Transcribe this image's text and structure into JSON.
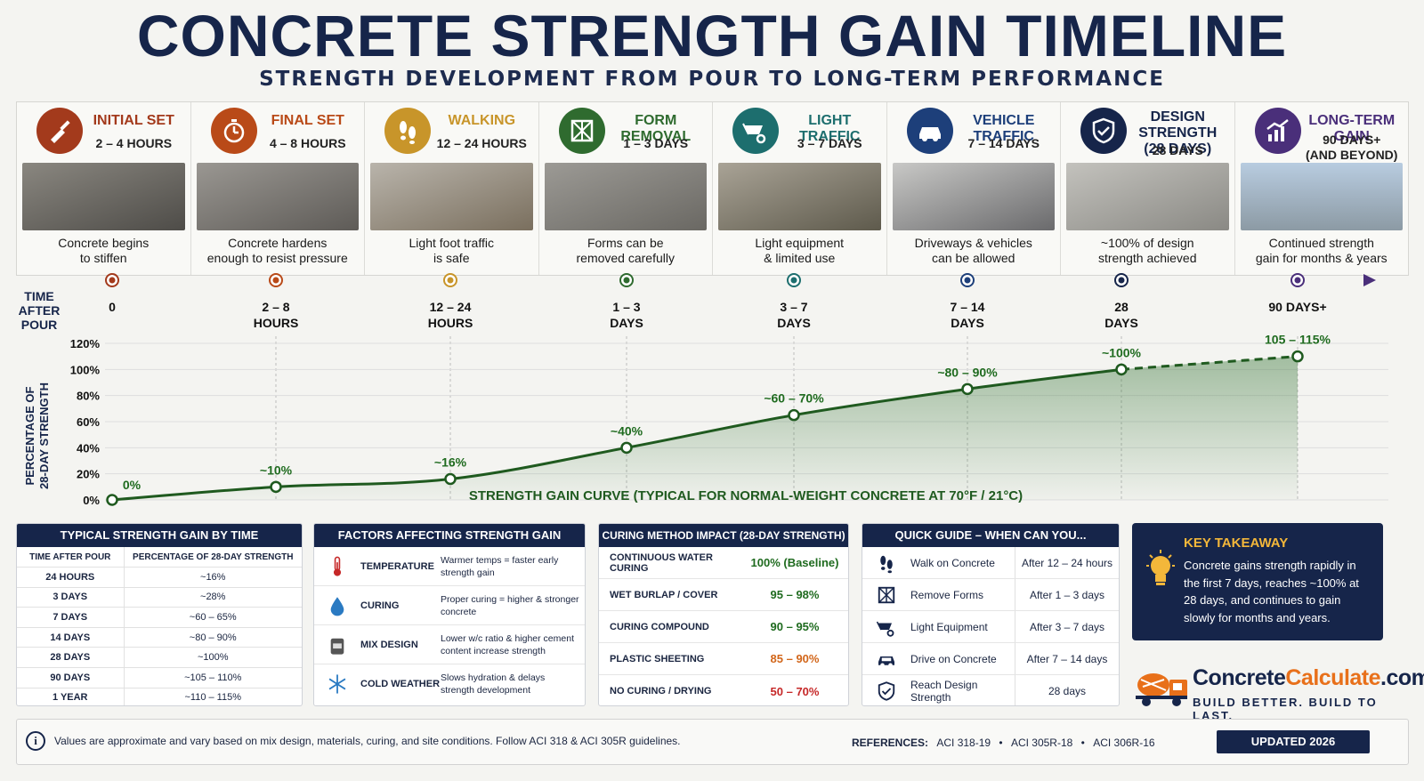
{
  "header": {
    "title": "CONCRETE STRENGTH GAIN TIMELINE",
    "subtitle": "STRENGTH DEVELOPMENT FROM POUR TO LONG-TERM PERFORMANCE"
  },
  "stages": [
    {
      "name": "INITIAL SET",
      "time": "2 – 4 HOURS",
      "desc": "Concrete begins\nto stiffen",
      "color": "#a33a1c",
      "icon": "trowel-icon"
    },
    {
      "name": "FINAL SET",
      "time": "4 – 8 HOURS",
      "desc": "Concrete hardens\nenough to resist pressure",
      "color": "#b94a18",
      "icon": "stopwatch-icon"
    },
    {
      "name": "WALKING",
      "time": "12 – 24 HOURS",
      "desc": "Light foot traffic\nis safe",
      "color": "#c8952a",
      "icon": "footprints-icon"
    },
    {
      "name": "FORM REMOVAL",
      "time": "1 – 3 DAYS",
      "desc": "Forms can be\nremoved carefully",
      "color": "#2f6b2f",
      "icon": "formwork-icon"
    },
    {
      "name": "LIGHT TRAFFIC",
      "time": "3 – 7 DAYS",
      "desc": "Light equipment\n& limited use",
      "color": "#1d6e6e",
      "icon": "wheelbarrow-icon"
    },
    {
      "name": "VEHICLE TRAFFIC",
      "time": "7 – 14 DAYS",
      "desc": "Driveways & vehicles\ncan be allowed",
      "color": "#1d3f7a",
      "icon": "car-icon"
    },
    {
      "name": "DESIGN STRENGTH\n(28 DAYS)",
      "time": "28 DAYS",
      "desc": "~100% of design\nstrength achieved",
      "color": "#16254a",
      "icon": "shield-check-icon"
    },
    {
      "name": "LONG-TERM GAIN",
      "time": "90 DAYS+\n(AND BEYOND)",
      "desc": "Continued strength\ngain for months & years",
      "color": "#4a2f7a",
      "icon": "growth-chart-icon"
    }
  ],
  "chart_data": {
    "type": "line",
    "title": "STRENGTH GAIN CURVE (TYPICAL FOR NORMAL-WEIGHT CONCRETE AT 70°F / 21°C)",
    "xlabel": "TIME AFTER POUR",
    "ylabel": "PERCENTAGE OF 28-DAY STRENGTH",
    "ylim": [
      0,
      120
    ],
    "yticks": [
      "0%",
      "20%",
      "40%",
      "60%",
      "80%",
      "100%",
      "120%"
    ],
    "categories": [
      "0",
      "2 – 8 HOURS",
      "12 – 24 HOURS",
      "1 – 3 DAYS",
      "3 – 7 DAYS",
      "7 – 14 DAYS",
      "28 DAYS",
      "90 DAYS+"
    ],
    "values": [
      0,
      10,
      16,
      40,
      65,
      85,
      100,
      110
    ],
    "labels": [
      "0%",
      "~10%",
      "~16%",
      "~40%",
      "~60 – 70%",
      "~80 – 90%",
      "~100%",
      "105 – 115%"
    ],
    "projected_from_index": 6,
    "line_color": "#1f5a1f",
    "grid": true
  },
  "table_time": {
    "title": "TYPICAL STRENGTH GAIN BY TIME",
    "headers": [
      "TIME AFTER POUR",
      "PERCENTAGE OF 28-DAY STRENGTH"
    ],
    "rows": [
      [
        "24 HOURS",
        "~16%"
      ],
      [
        "3 DAYS",
        "~28%"
      ],
      [
        "7 DAYS",
        "~60 – 65%"
      ],
      [
        "14 DAYS",
        "~80 – 90%"
      ],
      [
        "28 DAYS",
        "~100%"
      ],
      [
        "90 DAYS",
        "~105 – 110%"
      ],
      [
        "1 YEAR",
        "~110 – 115%"
      ]
    ]
  },
  "factors": {
    "title": "FACTORS AFFECTING STRENGTH GAIN",
    "rows": [
      {
        "name": "TEMPERATURE",
        "desc": "Warmer temps = faster early strength gain",
        "icon": "thermometer-icon"
      },
      {
        "name": "CURING",
        "desc": "Proper curing = higher & stronger concrete",
        "icon": "water-drop-icon"
      },
      {
        "name": "MIX DESIGN",
        "desc": "Lower w/c ratio & higher cement content increase strength",
        "icon": "cement-bag-icon"
      },
      {
        "name": "COLD WEATHER",
        "desc": "Slows hydration & delays strength development",
        "icon": "snowflake-icon"
      }
    ]
  },
  "curing": {
    "title": "CURING METHOD IMPACT (28-DAY STRENGTH)",
    "rows": [
      {
        "method": "CONTINUOUS WATER CURING",
        "value": "100% (Baseline)",
        "color": "#1f6b1f"
      },
      {
        "method": "WET BURLAP / COVER",
        "value": "95 – 98%",
        "color": "#1f6b1f"
      },
      {
        "method": "CURING COMPOUND",
        "value": "90 – 95%",
        "color": "#1f6b1f"
      },
      {
        "method": "PLASTIC SHEETING",
        "value": "85 – 90%",
        "color": "#d2661a"
      },
      {
        "method": "NO CURING / DRYING",
        "value": "50 – 70%",
        "color": "#c62828"
      }
    ]
  },
  "quick": {
    "title": "QUICK GUIDE – WHEN CAN YOU...",
    "rows": [
      {
        "action": "Walk on Concrete",
        "when": "After 12 – 24 hours",
        "icon": "footprints-icon"
      },
      {
        "action": "Remove Forms",
        "when": "After 1 – 3 days",
        "icon": "formwork-icon"
      },
      {
        "action": "Light Equipment",
        "when": "After 3 – 7 days",
        "icon": "wheelbarrow-icon"
      },
      {
        "action": "Drive on Concrete",
        "when": "After 7 – 14 days",
        "icon": "car-icon"
      },
      {
        "action": "Reach Design Strength",
        "when": "28 days",
        "icon": "shield-check-icon"
      }
    ]
  },
  "takeaway": {
    "title": "KEY TAKEAWAY",
    "text": "Concrete gains strength rapidly in the first 7 days, reaches ~100% at 28 days, and continues to gain slowly for months and years."
  },
  "logo": {
    "name_a": "Concrete",
    "name_b": "Calculate",
    "name_c": ".com",
    "tagline": "BUILD BETTER. BUILD TO LAST."
  },
  "footer": {
    "note": "Values are approximate and vary based on mix design, materials, curing, and site conditions. Follow ACI 318 & ACI 305R guidelines.",
    "refs_label": "REFERENCES:",
    "refs": [
      "ACI 318-19",
      "ACI 305R-18",
      "ACI 306R-16"
    ],
    "updated": "UPDATED 2026"
  }
}
